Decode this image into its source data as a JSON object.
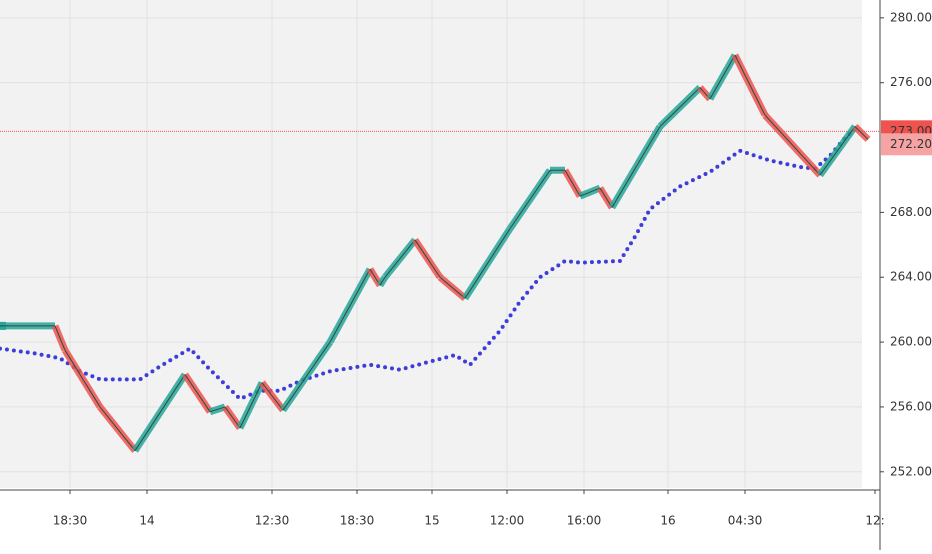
{
  "chart_data": {
    "type": "renko",
    "x": [
      0,
      55,
      65,
      100,
      135,
      185,
      210,
      225,
      240,
      262,
      283,
      330,
      370,
      380,
      385,
      415,
      440,
      465,
      510,
      550,
      565,
      580,
      600,
      612,
      660,
      700,
      710,
      735,
      765,
      820,
      855,
      868
    ],
    "series": [
      {
        "color": "#26a69a",
        "down_color": "#ef5350",
        "values": [
          261,
          261,
          259.5,
          256,
          253.3,
          258,
          255.7,
          256,
          254.7,
          257.5,
          255.8,
          260,
          264.5,
          263.5,
          264,
          266.3,
          264,
          262.7,
          267,
          270.6,
          270.6,
          269,
          269.5,
          268.3,
          273.3,
          275.7,
          275,
          277.7,
          274,
          270.3,
          273.3,
          272.5
        ]
      },
      {
        "color": "#3d3dd8",
        "x": [
          0,
          35,
          60,
          80,
          100,
          140,
          160,
          190,
          210,
          240,
          260,
          280,
          300,
          330,
          370,
          400,
          430,
          455,
          470,
          480,
          500,
          520,
          540,
          565,
          580,
          620,
          635,
          650,
          680,
          710,
          740,
          770,
          800,
          815,
          830,
          845,
          858
        ],
        "values": [
          259.6,
          259.3,
          259,
          258.2,
          257.7,
          257.7,
          258.5,
          259.6,
          258.3,
          256.5,
          257,
          257,
          257.6,
          258.2,
          258.6,
          258.3,
          258.8,
          259.2,
          258.6,
          259.3,
          260.7,
          262.5,
          264,
          265,
          264.9,
          265,
          266.5,
          268.2,
          269.6,
          270.5,
          271.8,
          271.2,
          270.8,
          270.7,
          271.5,
          272.6,
          273.3
        ]
      }
    ],
    "last_price": {
      "value": 273.0,
      "label": "273.00",
      "color": "#ef5350"
    },
    "ma_price": {
      "value": 272.2,
      "label": "272.20",
      "color": "#f5a3a3"
    },
    "xlim": [
      0,
      880
    ],
    "ylim": [
      251,
      281.1
    ],
    "yticks": [
      {
        "value": 252,
        "label": "252.00"
      },
      {
        "value": 256,
        "label": "256.00"
      },
      {
        "value": 260,
        "label": "260.00"
      },
      {
        "value": 264,
        "label": "264.00"
      },
      {
        "value": 268,
        "label": "268.00"
      },
      {
        "value": 276,
        "label": "276.00"
      },
      {
        "value": 280,
        "label": "280.00"
      }
    ],
    "xticks": [
      {
        "value": 70,
        "label": "18:30"
      },
      {
        "value": 147,
        "label": "14"
      },
      {
        "value": 272,
        "label": "12:30"
      },
      {
        "value": 357,
        "label": "18:30"
      },
      {
        "value": 432,
        "label": "15"
      },
      {
        "value": 507,
        "label": "12:00"
      },
      {
        "value": 584,
        "label": "16:00"
      },
      {
        "value": 668,
        "label": "16"
      },
      {
        "value": 745,
        "label": "04:30"
      },
      {
        "value": 875,
        "label": "12:"
      }
    ],
    "grid": true
  }
}
